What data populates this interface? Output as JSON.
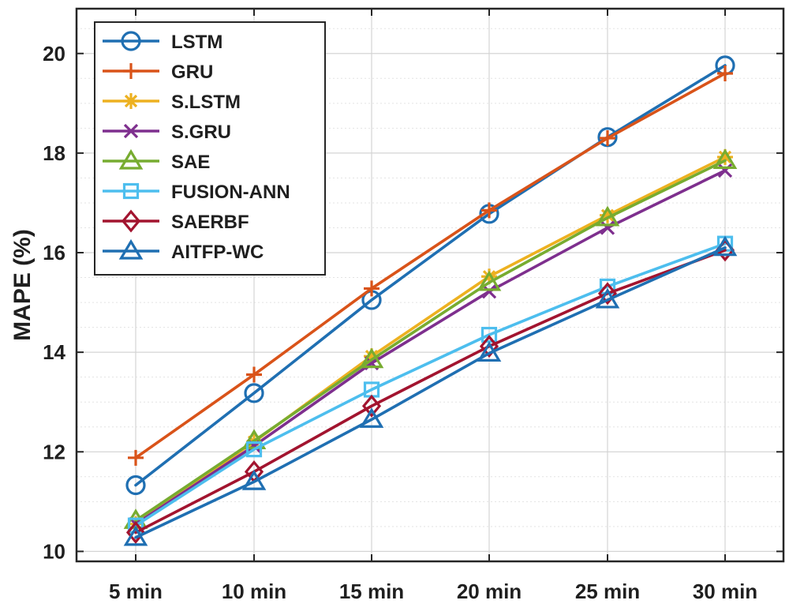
{
  "chart_data": {
    "type": "line",
    "title": "",
    "xlabel": "",
    "ylabel": "MAPE (%)",
    "categories": [
      "5 min",
      "10 min",
      "15 min",
      "20 min",
      "25 min",
      "30 min"
    ],
    "ylim": [
      9.8,
      20.9
    ],
    "yticks": [
      "10",
      "12",
      "14",
      "16",
      "18",
      "20"
    ],
    "grid": true,
    "legend_position": "top-left",
    "series": [
      {
        "name": "LSTM",
        "marker": "circle",
        "color": "#1f6fb2",
        "values": [
          11.33,
          13.18,
          15.05,
          16.78,
          18.32,
          19.76
        ]
      },
      {
        "name": "GRU",
        "marker": "plus",
        "color": "#d95319",
        "values": [
          11.88,
          13.55,
          15.28,
          16.85,
          18.3,
          19.6
        ]
      },
      {
        "name": "S.LSTM",
        "marker": "asterisk",
        "color": "#edb120",
        "values": [
          10.55,
          12.2,
          13.92,
          15.52,
          16.75,
          17.92
        ]
      },
      {
        "name": "S.GRU",
        "marker": "x",
        "color": "#7e2f8e",
        "values": [
          10.55,
          12.12,
          13.78,
          15.22,
          16.5,
          17.65
        ]
      },
      {
        "name": "SAE",
        "marker": "triangle",
        "color": "#77ac30",
        "values": [
          10.62,
          12.22,
          13.85,
          15.4,
          16.7,
          17.85
        ]
      },
      {
        "name": "FUSION-ANN",
        "marker": "square",
        "color": "#4dbeee",
        "values": [
          10.52,
          12.05,
          13.25,
          14.35,
          15.32,
          16.18
        ]
      },
      {
        "name": "SAERBF",
        "marker": "diamond",
        "color": "#a2142f",
        "values": [
          10.38,
          11.6,
          12.92,
          14.12,
          15.18,
          16.05
        ]
      },
      {
        "name": "AITFP-WC",
        "marker": "triangle",
        "color": "#1f6fb2",
        "values": [
          10.28,
          11.4,
          12.65,
          13.98,
          15.05,
          16.1
        ]
      }
    ]
  }
}
